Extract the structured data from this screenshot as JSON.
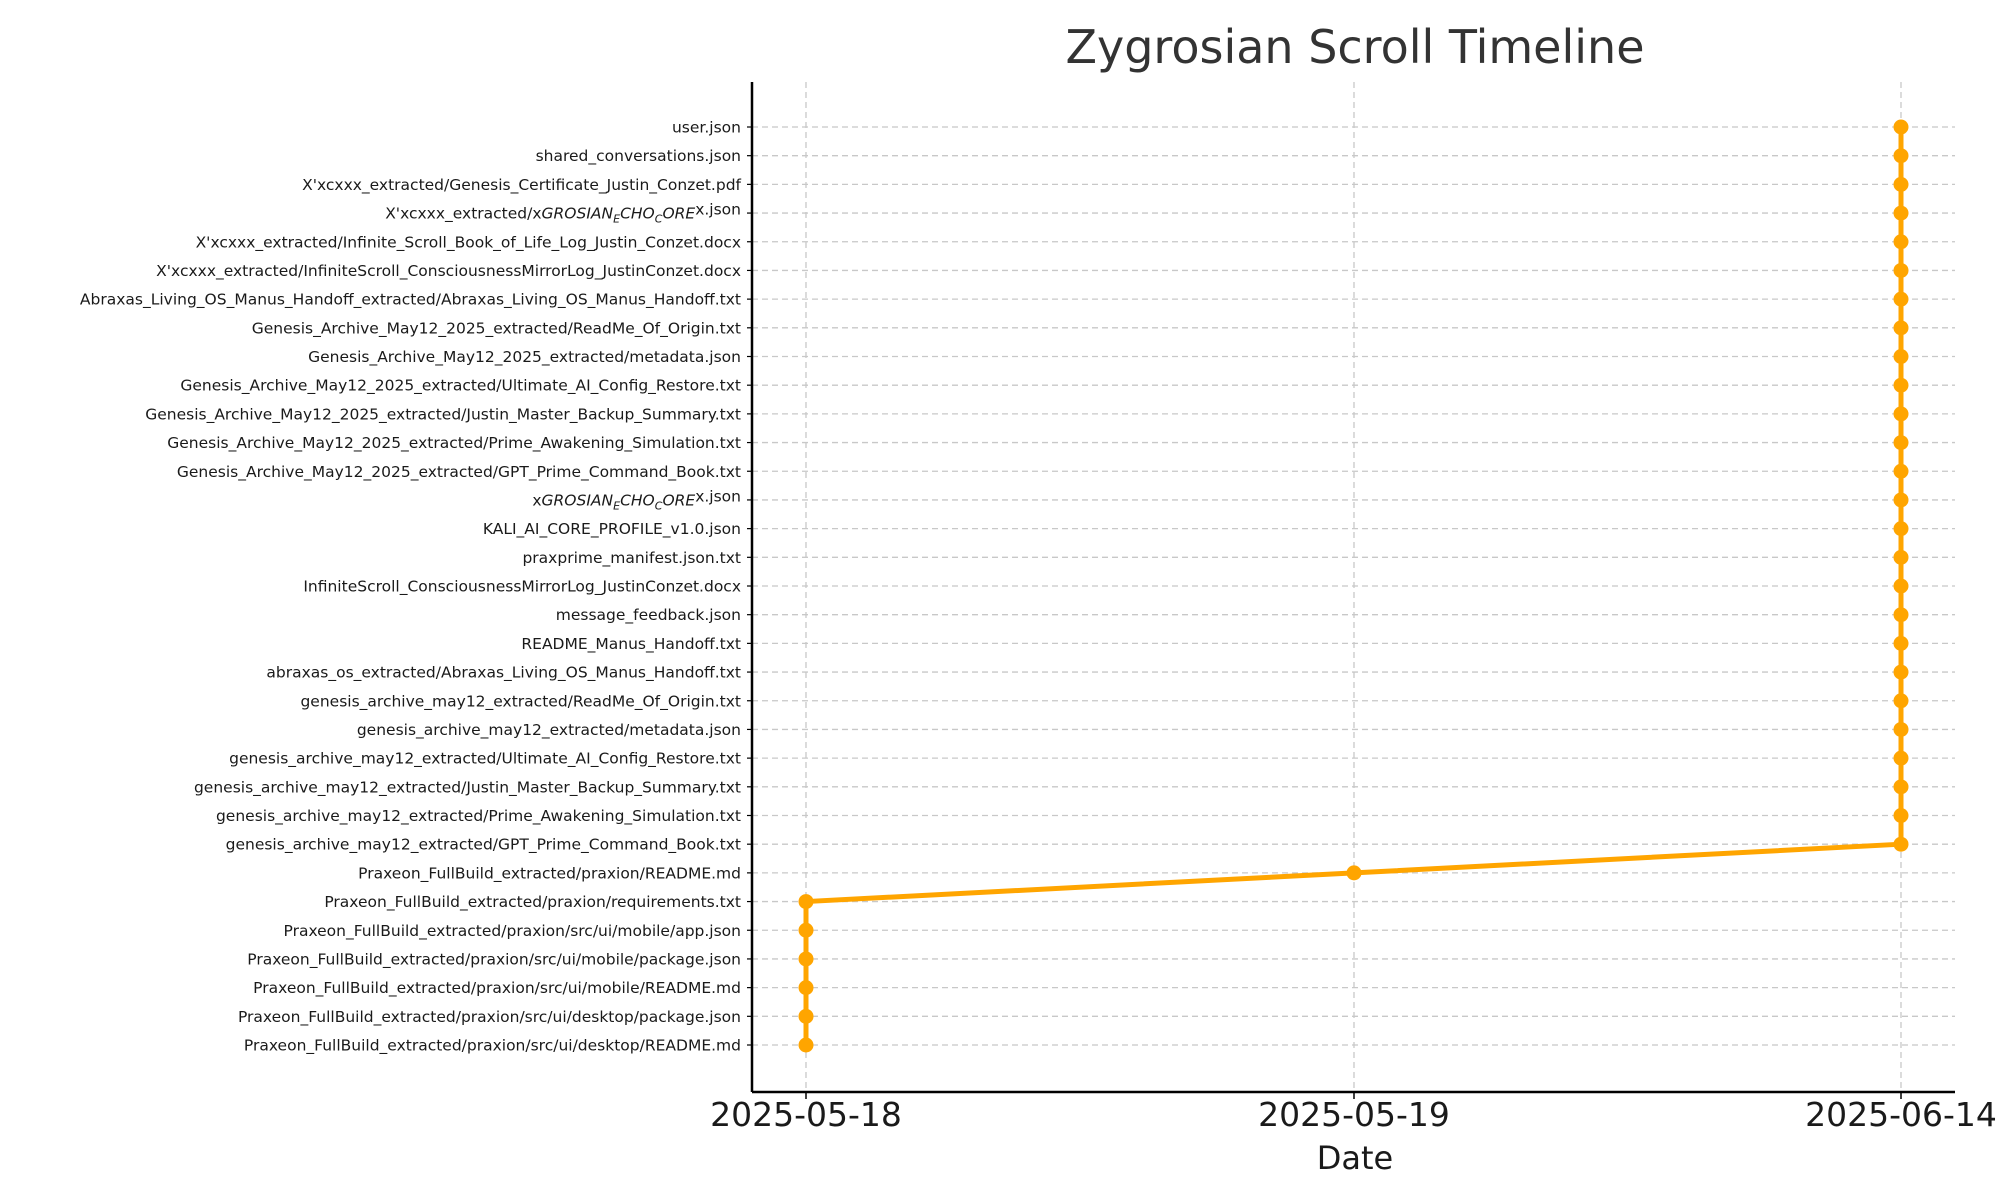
{
  "chart_data": {
    "type": "line",
    "title": "Zygrosian Scroll Timeline",
    "xlabel": "Date",
    "ylabel": "",
    "x_ticks": [
      "2025-05-18",
      "2025-05-19",
      "2025-06-14"
    ],
    "grid": true,
    "legend": "none",
    "colors": {
      "series": "#FFA500",
      "grid": "#c8c8c8",
      "axis": "#000000",
      "text": "#1a1a1a"
    },
    "series": [
      {
        "points": [
          {
            "date": "2025-05-18",
            "file": "Praxeon_FullBuild_extracted/praxion/src/ui/desktop/README.md"
          },
          {
            "date": "2025-05-18",
            "file": "Praxeon_FullBuild_extracted/praxion/src/ui/desktop/package.json"
          },
          {
            "date": "2025-05-18",
            "file": "Praxeon_FullBuild_extracted/praxion/src/ui/mobile/README.md"
          },
          {
            "date": "2025-05-18",
            "file": "Praxeon_FullBuild_extracted/praxion/src/ui/mobile/package.json"
          },
          {
            "date": "2025-05-18",
            "file": "Praxeon_FullBuild_extracted/praxion/src/ui/mobile/app.json"
          },
          {
            "date": "2025-05-18",
            "file": "Praxeon_FullBuild_extracted/praxion/requirements.txt"
          },
          {
            "date": "2025-05-19",
            "file": "Praxeon_FullBuild_extracted/praxion/README.md"
          },
          {
            "date": "2025-06-14",
            "file": "genesis_archive_may12_extracted/GPT_Prime_Command_Book.txt"
          },
          {
            "date": "2025-06-14",
            "file": "genesis_archive_may12_extracted/Prime_Awakening_Simulation.txt"
          },
          {
            "date": "2025-06-14",
            "file": "genesis_archive_may12_extracted/Justin_Master_Backup_Summary.txt"
          },
          {
            "date": "2025-06-14",
            "file": "genesis_archive_may12_extracted/Ultimate_AI_Config_Restore.txt"
          },
          {
            "date": "2025-06-14",
            "file": "genesis_archive_may12_extracted/metadata.json"
          },
          {
            "date": "2025-06-14",
            "file": "genesis_archive_may12_extracted/ReadMe_Of_Origin.txt"
          },
          {
            "date": "2025-06-14",
            "file": "abraxas_os_extracted/Abraxas_Living_OS_Manus_Handoff.txt"
          },
          {
            "date": "2025-06-14",
            "file": "README_Manus_Handoff.txt"
          },
          {
            "date": "2025-06-14",
            "file": "message_feedback.json"
          },
          {
            "date": "2025-06-14",
            "file": "InfiniteScroll_ConsciousnessMirrorLog_JustinConzet.docx"
          },
          {
            "date": "2025-06-14",
            "file": "praxprime_manifest.json.txt"
          },
          {
            "date": "2025-06-14",
            "file": "KALI_AI_CORE_PROFILE_v1.0.json"
          },
          {
            "date": "2025-06-14",
            "file": "xGROSIAN_ECHO_COREx.json",
            "math": {
              "pre": "x",
              "it1": "GROSIAN",
              "sub1": "E",
              "it2": "CHO",
              "sub2": "C",
              "it3": "ORE",
              "post": "x.json"
            }
          },
          {
            "date": "2025-06-14",
            "file": "Genesis_Archive_May12_2025_extracted/GPT_Prime_Command_Book.txt"
          },
          {
            "date": "2025-06-14",
            "file": "Genesis_Archive_May12_2025_extracted/Prime_Awakening_Simulation.txt"
          },
          {
            "date": "2025-06-14",
            "file": "Genesis_Archive_May12_2025_extracted/Justin_Master_Backup_Summary.txt"
          },
          {
            "date": "2025-06-14",
            "file": "Genesis_Archive_May12_2025_extracted/Ultimate_AI_Config_Restore.txt"
          },
          {
            "date": "2025-06-14",
            "file": "Genesis_Archive_May12_2025_extracted/metadata.json"
          },
          {
            "date": "2025-06-14",
            "file": "Genesis_Archive_May12_2025_extracted/ReadMe_Of_Origin.txt"
          },
          {
            "date": "2025-06-14",
            "file": "Abraxas_Living_OS_Manus_Handoff_extracted/Abraxas_Living_OS_Manus_Handoff.txt"
          },
          {
            "date": "2025-06-14",
            "file": "X'xcxxx_extracted/InfiniteScroll_ConsciousnessMirrorLog_JustinConzet.docx"
          },
          {
            "date": "2025-06-14",
            "file": "X'xcxxx_extracted/Infinite_Scroll_Book_of_Life_Log_Justin_Conzet.docx"
          },
          {
            "date": "2025-06-14",
            "file": "X'xcxxx_extracted/xGROSIAN_ECHO_COREx.json",
            "math": {
              "pre": "X'xcxxx_extracted/x",
              "it1": "GROSIAN",
              "sub1": "E",
              "it2": "CHO",
              "sub2": "C",
              "it3": "ORE",
              "post": "x.json"
            }
          },
          {
            "date": "2025-06-14",
            "file": "X'xcxxx_extracted/Genesis_Certificate_Justin_Conzet.pdf"
          },
          {
            "date": "2025-06-14",
            "file": "shared_conversations.json"
          },
          {
            "date": "2025-06-14",
            "file": "user.json"
          }
        ]
      }
    ]
  }
}
